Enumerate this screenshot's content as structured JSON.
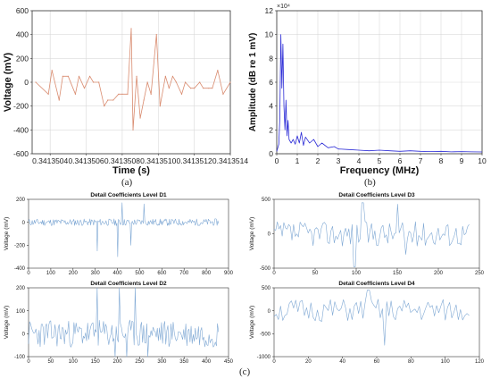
{
  "captions": {
    "a": "(a)",
    "b": "(b)",
    "c": "(c)"
  },
  "chart_data": [
    {
      "id": "a",
      "type": "line",
      "xlabel": "Time (s)",
      "ylabel": "Voltage (mV)",
      "xlim": [
        0.3413503,
        0.3413514
      ],
      "ylim": [
        -600,
        600
      ],
      "xticks": [
        "0.3413504",
        "0.3413506",
        "0.3413508",
        "0.3413510",
        "0.3413512",
        "0.3413514"
      ],
      "xtick_values": [
        0.3413504,
        0.3413506,
        0.3413508,
        0.341351,
        0.3413512,
        0.3413514
      ],
      "yticks": [
        -600,
        -400,
        -200,
        0,
        200,
        400,
        600
      ],
      "grid": true,
      "color": "#d98c70",
      "series": [
        {
          "x": [
            0.34135032,
            0.34135039,
            0.34135041,
            0.34135045,
            0.34135047,
            0.3413505,
            0.34135054,
            0.34135056,
            0.34135059,
            0.34135062,
            0.34135064,
            0.34135067,
            0.3413507,
            0.34135072,
            0.34135075,
            0.34135078,
            0.3413508,
            0.34135083,
            0.34135085,
            0.34135086,
            0.34135088,
            0.3413509,
            0.34135092,
            0.34135094,
            0.34135096,
            0.34135099,
            0.34135101,
            0.34135104,
            0.34135106,
            0.34135108,
            0.3413511,
            0.34135113,
            0.34135115,
            0.34135118,
            0.3413512,
            0.34135123,
            0.34135125,
            0.34135128,
            0.3413513,
            0.34135133,
            0.34135136,
            0.3413514
          ],
          "y": [
            0,
            -100,
            100,
            -150,
            50,
            50,
            -100,
            50,
            -50,
            50,
            0,
            0,
            -200,
            -150,
            -150,
            -100,
            -100,
            -100,
            450,
            -400,
            50,
            -300,
            -150,
            0,
            -100,
            400,
            -200,
            50,
            -50,
            50,
            0,
            -100,
            0,
            -50,
            -50,
            0,
            -50,
            -50,
            -50,
            100,
            -100,
            0
          ]
        }
      ]
    },
    {
      "id": "b",
      "type": "line",
      "xlabel": "Frequency (MHz)",
      "ylabel": "Amplitude (dB re 1 mV)",
      "xlim": [
        0,
        10
      ],
      "ylim": [
        0,
        120000
      ],
      "xticks": [
        0,
        1,
        2,
        3,
        4,
        5,
        6,
        7,
        8,
        9,
        10
      ],
      "yticks": [
        0,
        2,
        4,
        6,
        8,
        10,
        12
      ],
      "ytick_multiplier": "×10⁴",
      "grid": true,
      "color": "#2b2bd6",
      "series": [
        {
          "x": [
            0,
            0.1,
            0.15,
            0.2,
            0.25,
            0.3,
            0.35,
            0.4,
            0.45,
            0.5,
            0.55,
            0.6,
            0.7,
            0.8,
            0.9,
            1.0,
            1.1,
            1.2,
            1.3,
            1.4,
            1.6,
            1.8,
            2.0,
            2.2,
            2.5,
            2.8,
            3.0,
            3.5,
            4.0,
            4.5,
            5.0,
            5.5,
            6.0,
            6.5,
            7.0,
            7.5,
            8.0,
            8.5,
            9.0,
            9.5,
            10.0
          ],
          "y": [
            2000,
            8000,
            30000,
            100000,
            55000,
            92000,
            40000,
            20000,
            45000,
            15000,
            28000,
            12000,
            9000,
            12000,
            8000,
            15000,
            9000,
            18000,
            7000,
            14000,
            9000,
            12000,
            6000,
            9000,
            5000,
            6000,
            4000,
            3500,
            3000,
            2500,
            3000,
            2500,
            2000,
            2500,
            2000,
            1800,
            2000,
            1600,
            1800,
            1600,
            1500
          ]
        }
      ]
    },
    {
      "id": "d1",
      "type": "line",
      "title": "Detail Coefficients Level D1",
      "ylabel": "Voltage (mV)",
      "xlim": [
        0,
        900
      ],
      "ylim": [
        -400,
        200
      ],
      "xticks": [
        0,
        100,
        200,
        300,
        400,
        500,
        600,
        700,
        800,
        900
      ],
      "yticks": [
        -400,
        -200,
        0,
        200
      ],
      "color": "#7fa8d4",
      "spikes": [
        {
          "x": 310,
          "y": -250
        },
        {
          "x": 400,
          "y": -300
        },
        {
          "x": 420,
          "y": 170
        },
        {
          "x": 460,
          "y": -200
        },
        {
          "x": 520,
          "y": 160
        }
      ]
    },
    {
      "id": "d2",
      "type": "line",
      "title": "Detail Coefficients Level D2",
      "ylabel": "Voltage (mV)",
      "xlim": [
        0,
        450
      ],
      "ylim": [
        -100,
        200
      ],
      "xticks": [
        0,
        50,
        100,
        150,
        200,
        250,
        300,
        350,
        400,
        450
      ],
      "yticks": [
        -100,
        0,
        100,
        200
      ],
      "color": "#7fa8d4",
      "spikes": [
        {
          "x": 155,
          "y": 200
        },
        {
          "x": 195,
          "y": -100
        },
        {
          "x": 205,
          "y": 200
        },
        {
          "x": 220,
          "y": -100
        },
        {
          "x": 240,
          "y": 200
        },
        {
          "x": 268,
          "y": -100
        }
      ]
    },
    {
      "id": "d3",
      "type": "line",
      "title": "Detail Coefficients Level D3",
      "ylabel": "Voltage (mV)",
      "xlim": [
        0,
        250
      ],
      "ylim": [
        -500,
        500
      ],
      "xticks": [
        0,
        50,
        100,
        150,
        200,
        250
      ],
      "yticks": [
        -500,
        0,
        500
      ],
      "color": "#7fa8d4",
      "spikes": [
        {
          "x": 98,
          "y": -480
        },
        {
          "x": 108,
          "y": 450
        },
        {
          "x": 150,
          "y": 430
        },
        {
          "x": 160,
          "y": -300
        }
      ]
    },
    {
      "id": "d4",
      "type": "line",
      "title": "Detail Coefficients Level D4",
      "ylabel": "Voltage (mV)",
      "xlim": [
        0,
        120
      ],
      "ylim": [
        -1000,
        500
      ],
      "xticks": [
        0,
        20,
        40,
        60,
        80,
        100,
        120
      ],
      "yticks": [
        -1000,
        -500,
        0,
        500
      ],
      "color": "#7fa8d4",
      "spikes": [
        {
          "x": 55,
          "y": 450
        },
        {
          "x": 65,
          "y": -750
        }
      ]
    }
  ]
}
